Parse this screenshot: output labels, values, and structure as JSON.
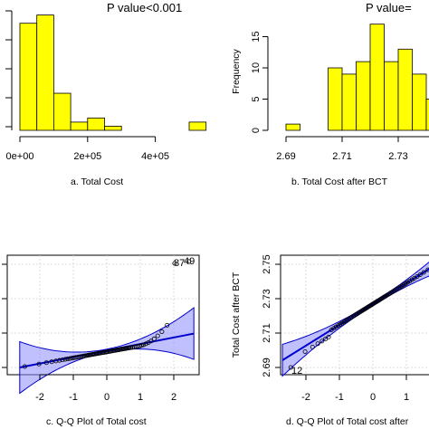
{
  "chart_data": [
    {
      "type": "bar",
      "panel": "a",
      "annotation": "P value<0.001",
      "caption": "a. Total Cost",
      "x_ticks": [
        "0e+00",
        "2e+05",
        "4e+05"
      ],
      "bins": [
        {
          "start": 0,
          "end": 50000,
          "count": 26
        },
        {
          "start": 50000,
          "end": 100000,
          "count": 28
        },
        {
          "start": 100000,
          "end": 150000,
          "count": 9
        },
        {
          "start": 150000,
          "end": 200000,
          "count": 2
        },
        {
          "start": 200000,
          "end": 250000,
          "count": 3
        },
        {
          "start": 250000,
          "end": 300000,
          "count": 1
        },
        {
          "start": 300000,
          "end": 350000,
          "count": 0
        },
        {
          "start": 350000,
          "end": 400000,
          "count": 0
        },
        {
          "start": 400000,
          "end": 450000,
          "count": 0
        },
        {
          "start": 450000,
          "end": 500000,
          "count": 0
        },
        {
          "start": 500000,
          "end": 550000,
          "count": 2
        }
      ],
      "fill": "#ffff00"
    },
    {
      "type": "bar",
      "panel": "b",
      "annotation": "P value=",
      "caption": "b. Total Cost after BCT",
      "ylabel": "Frequency",
      "x_ticks": [
        "2.69",
        "2.71",
        "2.73"
      ],
      "y_ticks": [
        "0",
        "5",
        "10",
        "15"
      ],
      "bins": [
        {
          "start": 2.69,
          "end": 2.695,
          "count": 1
        },
        {
          "start": 2.695,
          "end": 2.7,
          "count": 0
        },
        {
          "start": 2.7,
          "end": 2.705,
          "count": 0
        },
        {
          "start": 2.705,
          "end": 2.71,
          "count": 10
        },
        {
          "start": 2.71,
          "end": 2.715,
          "count": 9
        },
        {
          "start": 2.715,
          "end": 2.72,
          "count": 11
        },
        {
          "start": 2.72,
          "end": 2.725,
          "count": 17
        },
        {
          "start": 2.725,
          "end": 2.73,
          "count": 11
        },
        {
          "start": 2.73,
          "end": 2.735,
          "count": 13
        },
        {
          "start": 2.735,
          "end": 2.74,
          "count": 9
        },
        {
          "start": 2.74,
          "end": 2.745,
          "count": 5
        }
      ],
      "fill": "#ffff00"
    },
    {
      "type": "scatter",
      "panel": "c",
      "caption": "c. Q-Q Plot of Total cost",
      "x_ticks": [
        "-2",
        "-1",
        "0",
        "1",
        "2"
      ],
      "point_labels": [
        "87",
        "49"
      ],
      "line_color": "#0000cd",
      "band_color": "#8c8cff"
    },
    {
      "type": "scatter",
      "panel": "d",
      "caption": "d. Q-Q Plot of Total cost after",
      "ylabel": "Total Cost after BCT",
      "x_ticks": [
        "-2",
        "-1",
        "0",
        "1",
        "2"
      ],
      "y_ticks": [
        "2.69",
        "2.71",
        "2.73",
        "2.75"
      ],
      "point_labels": [
        "12"
      ],
      "line_color": "#0000cd",
      "band_color": "#8c8cff"
    }
  ]
}
